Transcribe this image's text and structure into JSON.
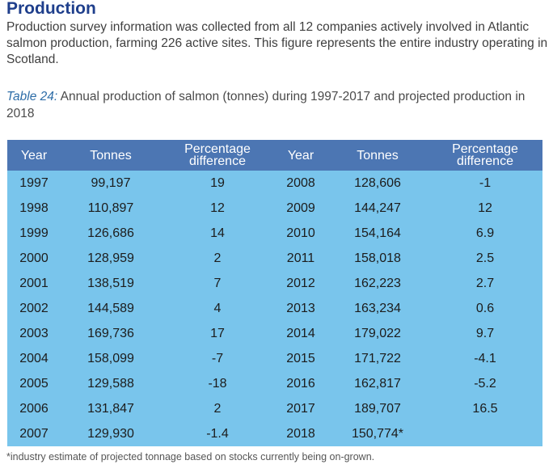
{
  "heading": "Production",
  "intro": "Production survey information was collected from all 12 companies actively involved in Atlantic salmon production, farming 226 active sites. This figure represents the entire industry operating in Scotland.",
  "caption": {
    "tag": "Table 24:",
    "text": " Annual production of salmon (tonnes) during 1997-2017 and projected production in 2018"
  },
  "table": {
    "headers": [
      "Year",
      "Tonnes",
      "Percentage difference",
      "Year",
      "Tonnes",
      "Percentage difference"
    ],
    "rows": [
      [
        "1997",
        "99,197",
        "19",
        "2008",
        "128,606",
        "-1"
      ],
      [
        "1998",
        "110,897",
        "12",
        "2009",
        "144,247",
        "12"
      ],
      [
        "1999",
        "126,686",
        "14",
        "2010",
        "154,164",
        "6.9"
      ],
      [
        "2000",
        "128,959",
        "2",
        "2011",
        "158,018",
        "2.5"
      ],
      [
        "2001",
        "138,519",
        "7",
        "2012",
        "162,223",
        "2.7"
      ],
      [
        "2002",
        "144,589",
        "4",
        "2013",
        "163,234",
        "0.6"
      ],
      [
        "2003",
        "169,736",
        "17",
        "2014",
        "179,022",
        "9.7"
      ],
      [
        "2004",
        "158,099",
        "-7",
        "2015",
        "171,722",
        "-4.1"
      ],
      [
        "2005",
        "129,588",
        "-18",
        "2016",
        "162,817",
        "-5.2"
      ],
      [
        "2006",
        "131,847",
        "2",
        "2017",
        "189,707",
        "16.5"
      ],
      [
        "2007",
        "129,930",
        "-1.4",
        "2018",
        "150,774*",
        ""
      ]
    ]
  },
  "footnote": "*industry estimate of projected tonnage based on stocks currently being on-grown.",
  "colors": {
    "heading": "#1f3f8c",
    "header_bg": "#4c76b3",
    "row_bg": "#79c5ec",
    "caption_tag": "#2f6ea8"
  }
}
